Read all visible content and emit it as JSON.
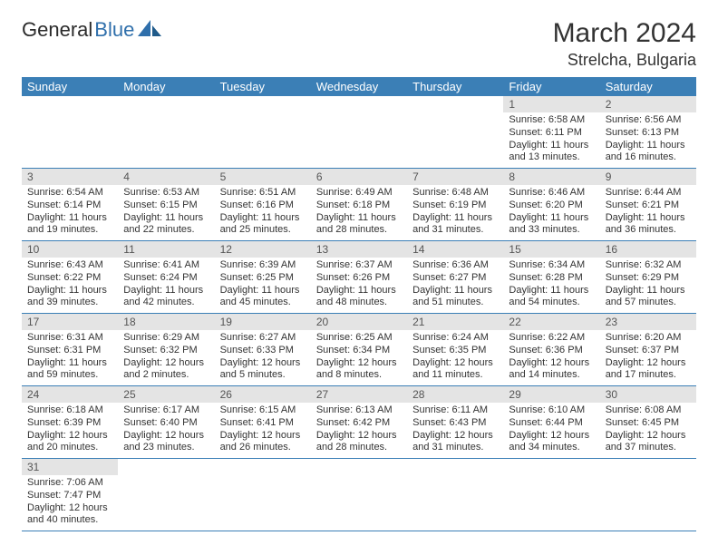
{
  "brand": {
    "part1": "General",
    "part2": "Blue"
  },
  "header": {
    "title": "March 2024",
    "location": "Strelcha, Bulgaria"
  },
  "colors": {
    "header_bg": "#3b7fb6",
    "header_text": "#ffffff",
    "daynum_bg": "#e4e4e4",
    "row_border": "#3b7fb6",
    "text": "#333333",
    "brand_blue": "#2f6fab"
  },
  "calendar": {
    "day_names": [
      "Sunday",
      "Monday",
      "Tuesday",
      "Wednesday",
      "Thursday",
      "Friday",
      "Saturday"
    ],
    "weeks": [
      [
        null,
        null,
        null,
        null,
        null,
        {
          "n": "1",
          "sunrise": "Sunrise: 6:58 AM",
          "sunset": "Sunset: 6:11 PM",
          "daylight": "Daylight: 11 hours and 13 minutes."
        },
        {
          "n": "2",
          "sunrise": "Sunrise: 6:56 AM",
          "sunset": "Sunset: 6:13 PM",
          "daylight": "Daylight: 11 hours and 16 minutes."
        }
      ],
      [
        {
          "n": "3",
          "sunrise": "Sunrise: 6:54 AM",
          "sunset": "Sunset: 6:14 PM",
          "daylight": "Daylight: 11 hours and 19 minutes."
        },
        {
          "n": "4",
          "sunrise": "Sunrise: 6:53 AM",
          "sunset": "Sunset: 6:15 PM",
          "daylight": "Daylight: 11 hours and 22 minutes."
        },
        {
          "n": "5",
          "sunrise": "Sunrise: 6:51 AM",
          "sunset": "Sunset: 6:16 PM",
          "daylight": "Daylight: 11 hours and 25 minutes."
        },
        {
          "n": "6",
          "sunrise": "Sunrise: 6:49 AM",
          "sunset": "Sunset: 6:18 PM",
          "daylight": "Daylight: 11 hours and 28 minutes."
        },
        {
          "n": "7",
          "sunrise": "Sunrise: 6:48 AM",
          "sunset": "Sunset: 6:19 PM",
          "daylight": "Daylight: 11 hours and 31 minutes."
        },
        {
          "n": "8",
          "sunrise": "Sunrise: 6:46 AM",
          "sunset": "Sunset: 6:20 PM",
          "daylight": "Daylight: 11 hours and 33 minutes."
        },
        {
          "n": "9",
          "sunrise": "Sunrise: 6:44 AM",
          "sunset": "Sunset: 6:21 PM",
          "daylight": "Daylight: 11 hours and 36 minutes."
        }
      ],
      [
        {
          "n": "10",
          "sunrise": "Sunrise: 6:43 AM",
          "sunset": "Sunset: 6:22 PM",
          "daylight": "Daylight: 11 hours and 39 minutes."
        },
        {
          "n": "11",
          "sunrise": "Sunrise: 6:41 AM",
          "sunset": "Sunset: 6:24 PM",
          "daylight": "Daylight: 11 hours and 42 minutes."
        },
        {
          "n": "12",
          "sunrise": "Sunrise: 6:39 AM",
          "sunset": "Sunset: 6:25 PM",
          "daylight": "Daylight: 11 hours and 45 minutes."
        },
        {
          "n": "13",
          "sunrise": "Sunrise: 6:37 AM",
          "sunset": "Sunset: 6:26 PM",
          "daylight": "Daylight: 11 hours and 48 minutes."
        },
        {
          "n": "14",
          "sunrise": "Sunrise: 6:36 AM",
          "sunset": "Sunset: 6:27 PM",
          "daylight": "Daylight: 11 hours and 51 minutes."
        },
        {
          "n": "15",
          "sunrise": "Sunrise: 6:34 AM",
          "sunset": "Sunset: 6:28 PM",
          "daylight": "Daylight: 11 hours and 54 minutes."
        },
        {
          "n": "16",
          "sunrise": "Sunrise: 6:32 AM",
          "sunset": "Sunset: 6:29 PM",
          "daylight": "Daylight: 11 hours and 57 minutes."
        }
      ],
      [
        {
          "n": "17",
          "sunrise": "Sunrise: 6:31 AM",
          "sunset": "Sunset: 6:31 PM",
          "daylight": "Daylight: 11 hours and 59 minutes."
        },
        {
          "n": "18",
          "sunrise": "Sunrise: 6:29 AM",
          "sunset": "Sunset: 6:32 PM",
          "daylight": "Daylight: 12 hours and 2 minutes."
        },
        {
          "n": "19",
          "sunrise": "Sunrise: 6:27 AM",
          "sunset": "Sunset: 6:33 PM",
          "daylight": "Daylight: 12 hours and 5 minutes."
        },
        {
          "n": "20",
          "sunrise": "Sunrise: 6:25 AM",
          "sunset": "Sunset: 6:34 PM",
          "daylight": "Daylight: 12 hours and 8 minutes."
        },
        {
          "n": "21",
          "sunrise": "Sunrise: 6:24 AM",
          "sunset": "Sunset: 6:35 PM",
          "daylight": "Daylight: 12 hours and 11 minutes."
        },
        {
          "n": "22",
          "sunrise": "Sunrise: 6:22 AM",
          "sunset": "Sunset: 6:36 PM",
          "daylight": "Daylight: 12 hours and 14 minutes."
        },
        {
          "n": "23",
          "sunrise": "Sunrise: 6:20 AM",
          "sunset": "Sunset: 6:37 PM",
          "daylight": "Daylight: 12 hours and 17 minutes."
        }
      ],
      [
        {
          "n": "24",
          "sunrise": "Sunrise: 6:18 AM",
          "sunset": "Sunset: 6:39 PM",
          "daylight": "Daylight: 12 hours and 20 minutes."
        },
        {
          "n": "25",
          "sunrise": "Sunrise: 6:17 AM",
          "sunset": "Sunset: 6:40 PM",
          "daylight": "Daylight: 12 hours and 23 minutes."
        },
        {
          "n": "26",
          "sunrise": "Sunrise: 6:15 AM",
          "sunset": "Sunset: 6:41 PM",
          "daylight": "Daylight: 12 hours and 26 minutes."
        },
        {
          "n": "27",
          "sunrise": "Sunrise: 6:13 AM",
          "sunset": "Sunset: 6:42 PM",
          "daylight": "Daylight: 12 hours and 28 minutes."
        },
        {
          "n": "28",
          "sunrise": "Sunrise: 6:11 AM",
          "sunset": "Sunset: 6:43 PM",
          "daylight": "Daylight: 12 hours and 31 minutes."
        },
        {
          "n": "29",
          "sunrise": "Sunrise: 6:10 AM",
          "sunset": "Sunset: 6:44 PM",
          "daylight": "Daylight: 12 hours and 34 minutes."
        },
        {
          "n": "30",
          "sunrise": "Sunrise: 6:08 AM",
          "sunset": "Sunset: 6:45 PM",
          "daylight": "Daylight: 12 hours and 37 minutes."
        }
      ],
      [
        {
          "n": "31",
          "sunrise": "Sunrise: 7:06 AM",
          "sunset": "Sunset: 7:47 PM",
          "daylight": "Daylight: 12 hours and 40 minutes."
        },
        null,
        null,
        null,
        null,
        null,
        null
      ]
    ]
  }
}
